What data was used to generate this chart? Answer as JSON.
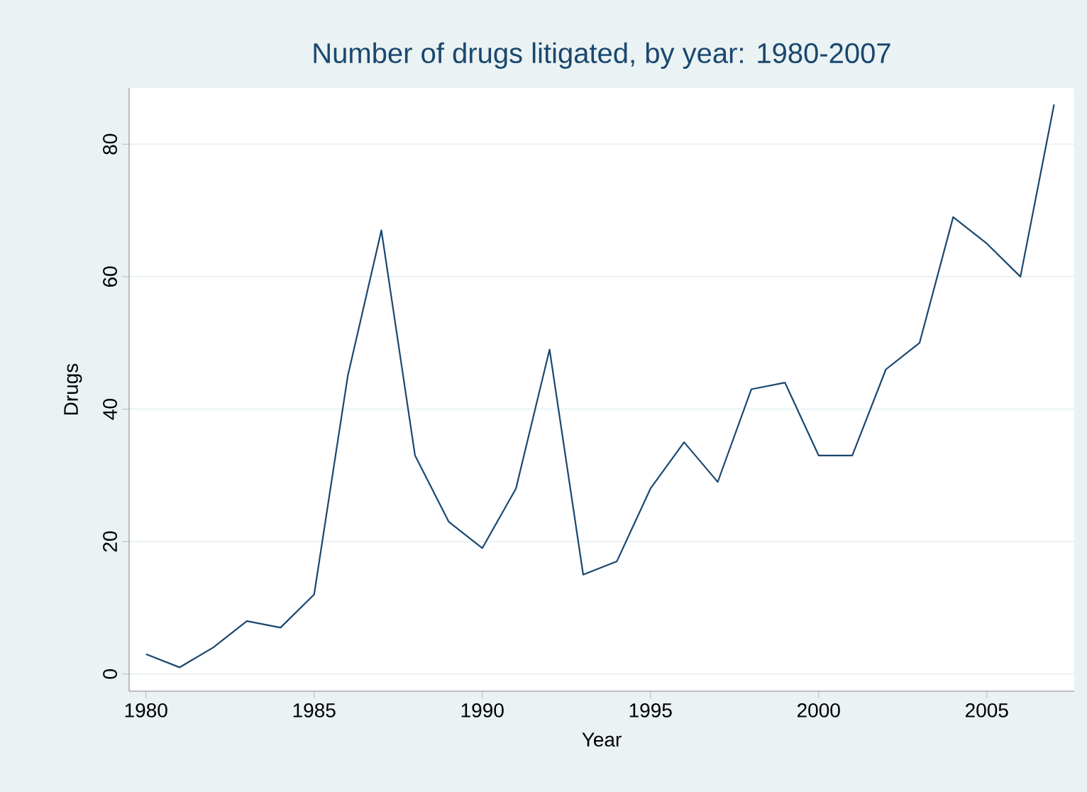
{
  "chart_data": {
    "type": "line",
    "title": "Number of drugs litigated, by year: 1980-2007",
    "xlabel": "Year",
    "ylabel": "Drugs",
    "x": [
      1980,
      1981,
      1982,
      1983,
      1984,
      1985,
      1986,
      1987,
      1988,
      1989,
      1990,
      1991,
      1992,
      1993,
      1994,
      1995,
      1996,
      1997,
      1998,
      1999,
      2000,
      2001,
      2002,
      2003,
      2004,
      2005,
      2006,
      2007
    ],
    "series": [
      {
        "color": "#1a476f",
        "values": [
          3,
          1,
          4,
          8,
          7,
          12,
          45,
          67,
          33,
          23,
          19,
          28,
          49,
          15,
          17,
          28,
          35,
          29,
          43,
          44,
          33,
          33,
          46,
          50,
          69,
          65,
          60,
          86
        ]
      }
    ],
    "xlim": [
      1979.5,
      2007.6
    ],
    "ylim": [
      -2.6,
      88.5
    ],
    "xticks": [
      1980,
      1985,
      1990,
      1995,
      2000,
      2005
    ],
    "yticks": [
      0,
      20,
      40,
      60,
      80
    ],
    "grid": "y",
    "legend": false,
    "marker": "none",
    "line_style": "solid"
  }
}
